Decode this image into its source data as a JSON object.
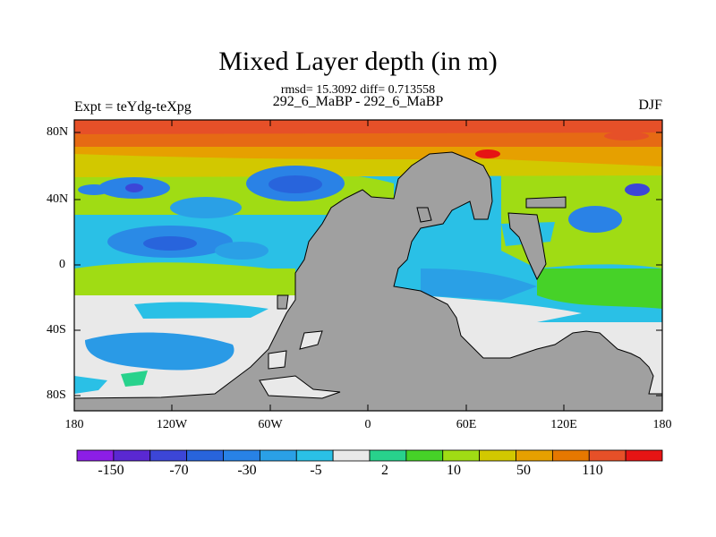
{
  "title": "Mixed Layer depth (in m)",
  "stats": "rmsd= 15.3092 diff= 0.713558",
  "subtitle_center": "292_6_MaBP - 292_6_MaBP",
  "subtitle_left": "Expt = teYdg-teXpg",
  "subtitle_right": "DJF",
  "lat_labels": [
    "80N",
    "40N",
    "0",
    "40S",
    "80S"
  ],
  "lon_labels": [
    "180",
    "120W",
    "60W",
    "0",
    "60E",
    "120E",
    "180"
  ],
  "colorbar": {
    "colors": [
      "#8c1ee6",
      "#5a28d2",
      "#3c46d7",
      "#2864dc",
      "#2882e6",
      "#2aa0e6",
      "#2ac0e6",
      "#e9e9e9",
      "#28d28c",
      "#46d228",
      "#a0dc14",
      "#d2c800",
      "#e6a000",
      "#e67800",
      "#e65028",
      "#e61414"
    ],
    "labels": [
      "-150",
      "-70",
      "-30",
      "-5",
      "2",
      "10",
      "50",
      "110"
    ]
  },
  "land_color": "#a0a0a0",
  "ocean_colors": {
    "arctic": "#e66a14",
    "ice_cap": "#e9e9e9",
    "green": "#a0dc14",
    "cyan": "#2ac0e6",
    "blue": "#2a8ae6",
    "deep_blue": "#2a5ad6"
  }
}
